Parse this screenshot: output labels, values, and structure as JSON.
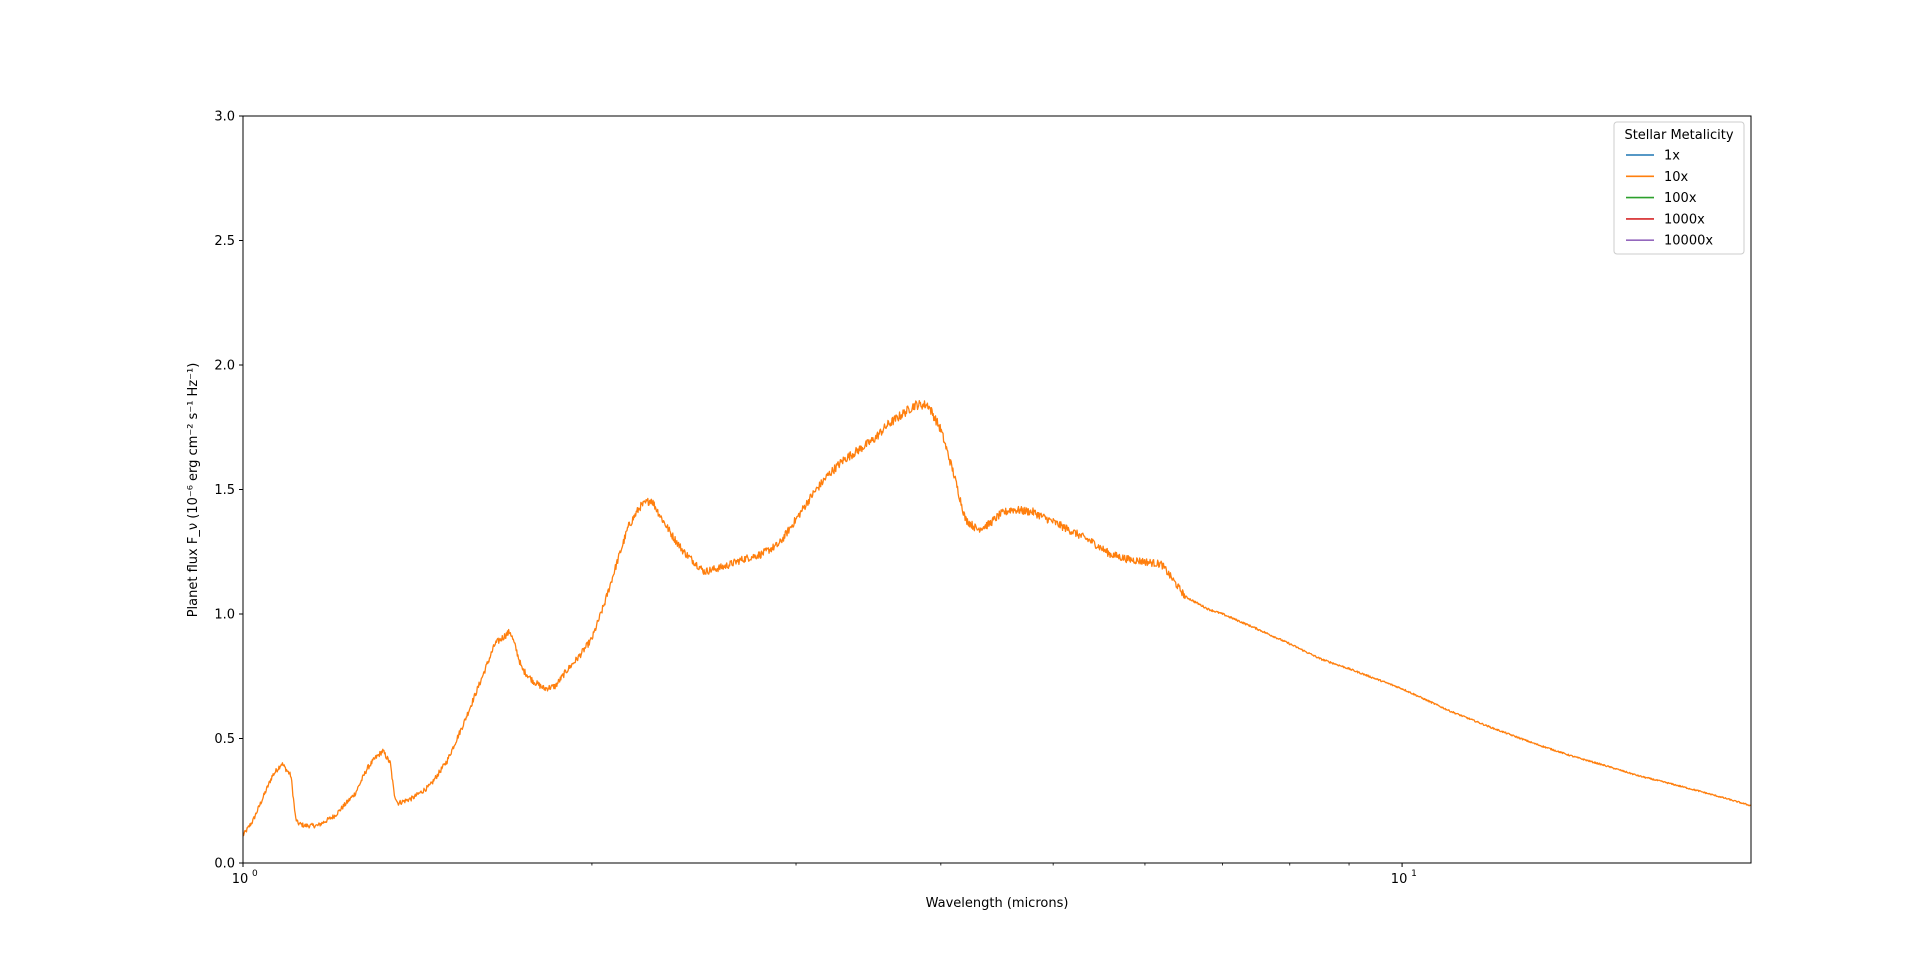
{
  "chart_data": {
    "type": "line",
    "title": "",
    "xlabel": "Wavelength (microns)",
    "ylabel": "Planet flux F_ν (10⁻⁶ erg cm⁻² s⁻¹ Hz⁻¹)",
    "xscale": "log",
    "xlim": [
      1.0,
      20.0
    ],
    "ylim": [
      0.0,
      3.0
    ],
    "yticks": [
      0.0,
      0.5,
      1.0,
      1.5,
      2.0,
      2.5,
      3.0
    ],
    "ytick_labels": [
      "0.0",
      "0.5",
      "1.0",
      "1.5",
      "2.0",
      "2.5",
      "3.0"
    ],
    "xtick_major": [
      1,
      10
    ],
    "xtick_labels": [
      "10",
      "10"
    ],
    "xtick_label_exponents": [
      "0",
      "1"
    ],
    "grid": false,
    "legend": {
      "title": "Stellar Metalicity",
      "placement": "top-right",
      "entries": [
        {
          "name": "1x",
          "color": "#1f77b4"
        },
        {
          "name": "10x",
          "color": "#ff7f0e"
        },
        {
          "name": "100x",
          "color": "#2ca02c"
        },
        {
          "name": "1000x",
          "color": "#d62728"
        },
        {
          "name": "10000x",
          "color": "#9467bd"
        }
      ]
    },
    "series": [
      {
        "name": "10x",
        "color": "#ff7f0e",
        "x": [
          1.0,
          1.02,
          1.04,
          1.06,
          1.08,
          1.1,
          1.11,
          1.115,
          1.13,
          1.16,
          1.2,
          1.25,
          1.28,
          1.3,
          1.32,
          1.34,
          1.35,
          1.36,
          1.4,
          1.45,
          1.5,
          1.55,
          1.6,
          1.65,
          1.7,
          1.72,
          1.74,
          1.78,
          1.82,
          1.86,
          1.9,
          1.95,
          2.0,
          2.05,
          2.1,
          2.15,
          2.2,
          2.25,
          2.3,
          2.35,
          2.4,
          2.5,
          2.6,
          2.7,
          2.8,
          2.9,
          3.0,
          3.1,
          3.2,
          3.3,
          3.4,
          3.5,
          3.6,
          3.7,
          3.8,
          3.9,
          4.0,
          4.1,
          4.2,
          4.3,
          4.4,
          4.5,
          4.6,
          4.8,
          5.0,
          5.2,
          5.4,
          5.6,
          5.8,
          6.0,
          6.2,
          6.5,
          6.8,
          7.0,
          7.5,
          8.0,
          8.5,
          9.0,
          10.0,
          11.0,
          12.0,
          13.0,
          14.0,
          15.0,
          16.0,
          17.0,
          18.0,
          19.0,
          20.0
        ],
        "values": [
          0.11,
          0.17,
          0.26,
          0.35,
          0.4,
          0.35,
          0.18,
          0.16,
          0.15,
          0.15,
          0.19,
          0.28,
          0.38,
          0.42,
          0.45,
          0.4,
          0.28,
          0.24,
          0.26,
          0.31,
          0.41,
          0.56,
          0.72,
          0.88,
          0.93,
          0.86,
          0.78,
          0.73,
          0.7,
          0.71,
          0.77,
          0.83,
          0.9,
          1.04,
          1.2,
          1.35,
          1.43,
          1.46,
          1.38,
          1.31,
          1.25,
          1.17,
          1.19,
          1.22,
          1.24,
          1.28,
          1.38,
          1.48,
          1.56,
          1.62,
          1.66,
          1.7,
          1.76,
          1.8,
          1.84,
          1.84,
          1.74,
          1.57,
          1.38,
          1.34,
          1.36,
          1.4,
          1.42,
          1.41,
          1.37,
          1.33,
          1.29,
          1.24,
          1.22,
          1.21,
          1.2,
          1.07,
          1.02,
          1.0,
          0.94,
          0.88,
          0.82,
          0.78,
          0.7,
          0.61,
          0.54,
          0.48,
          0.43,
          0.39,
          0.35,
          0.32,
          0.29,
          0.26,
          0.23
        ]
      }
    ]
  }
}
